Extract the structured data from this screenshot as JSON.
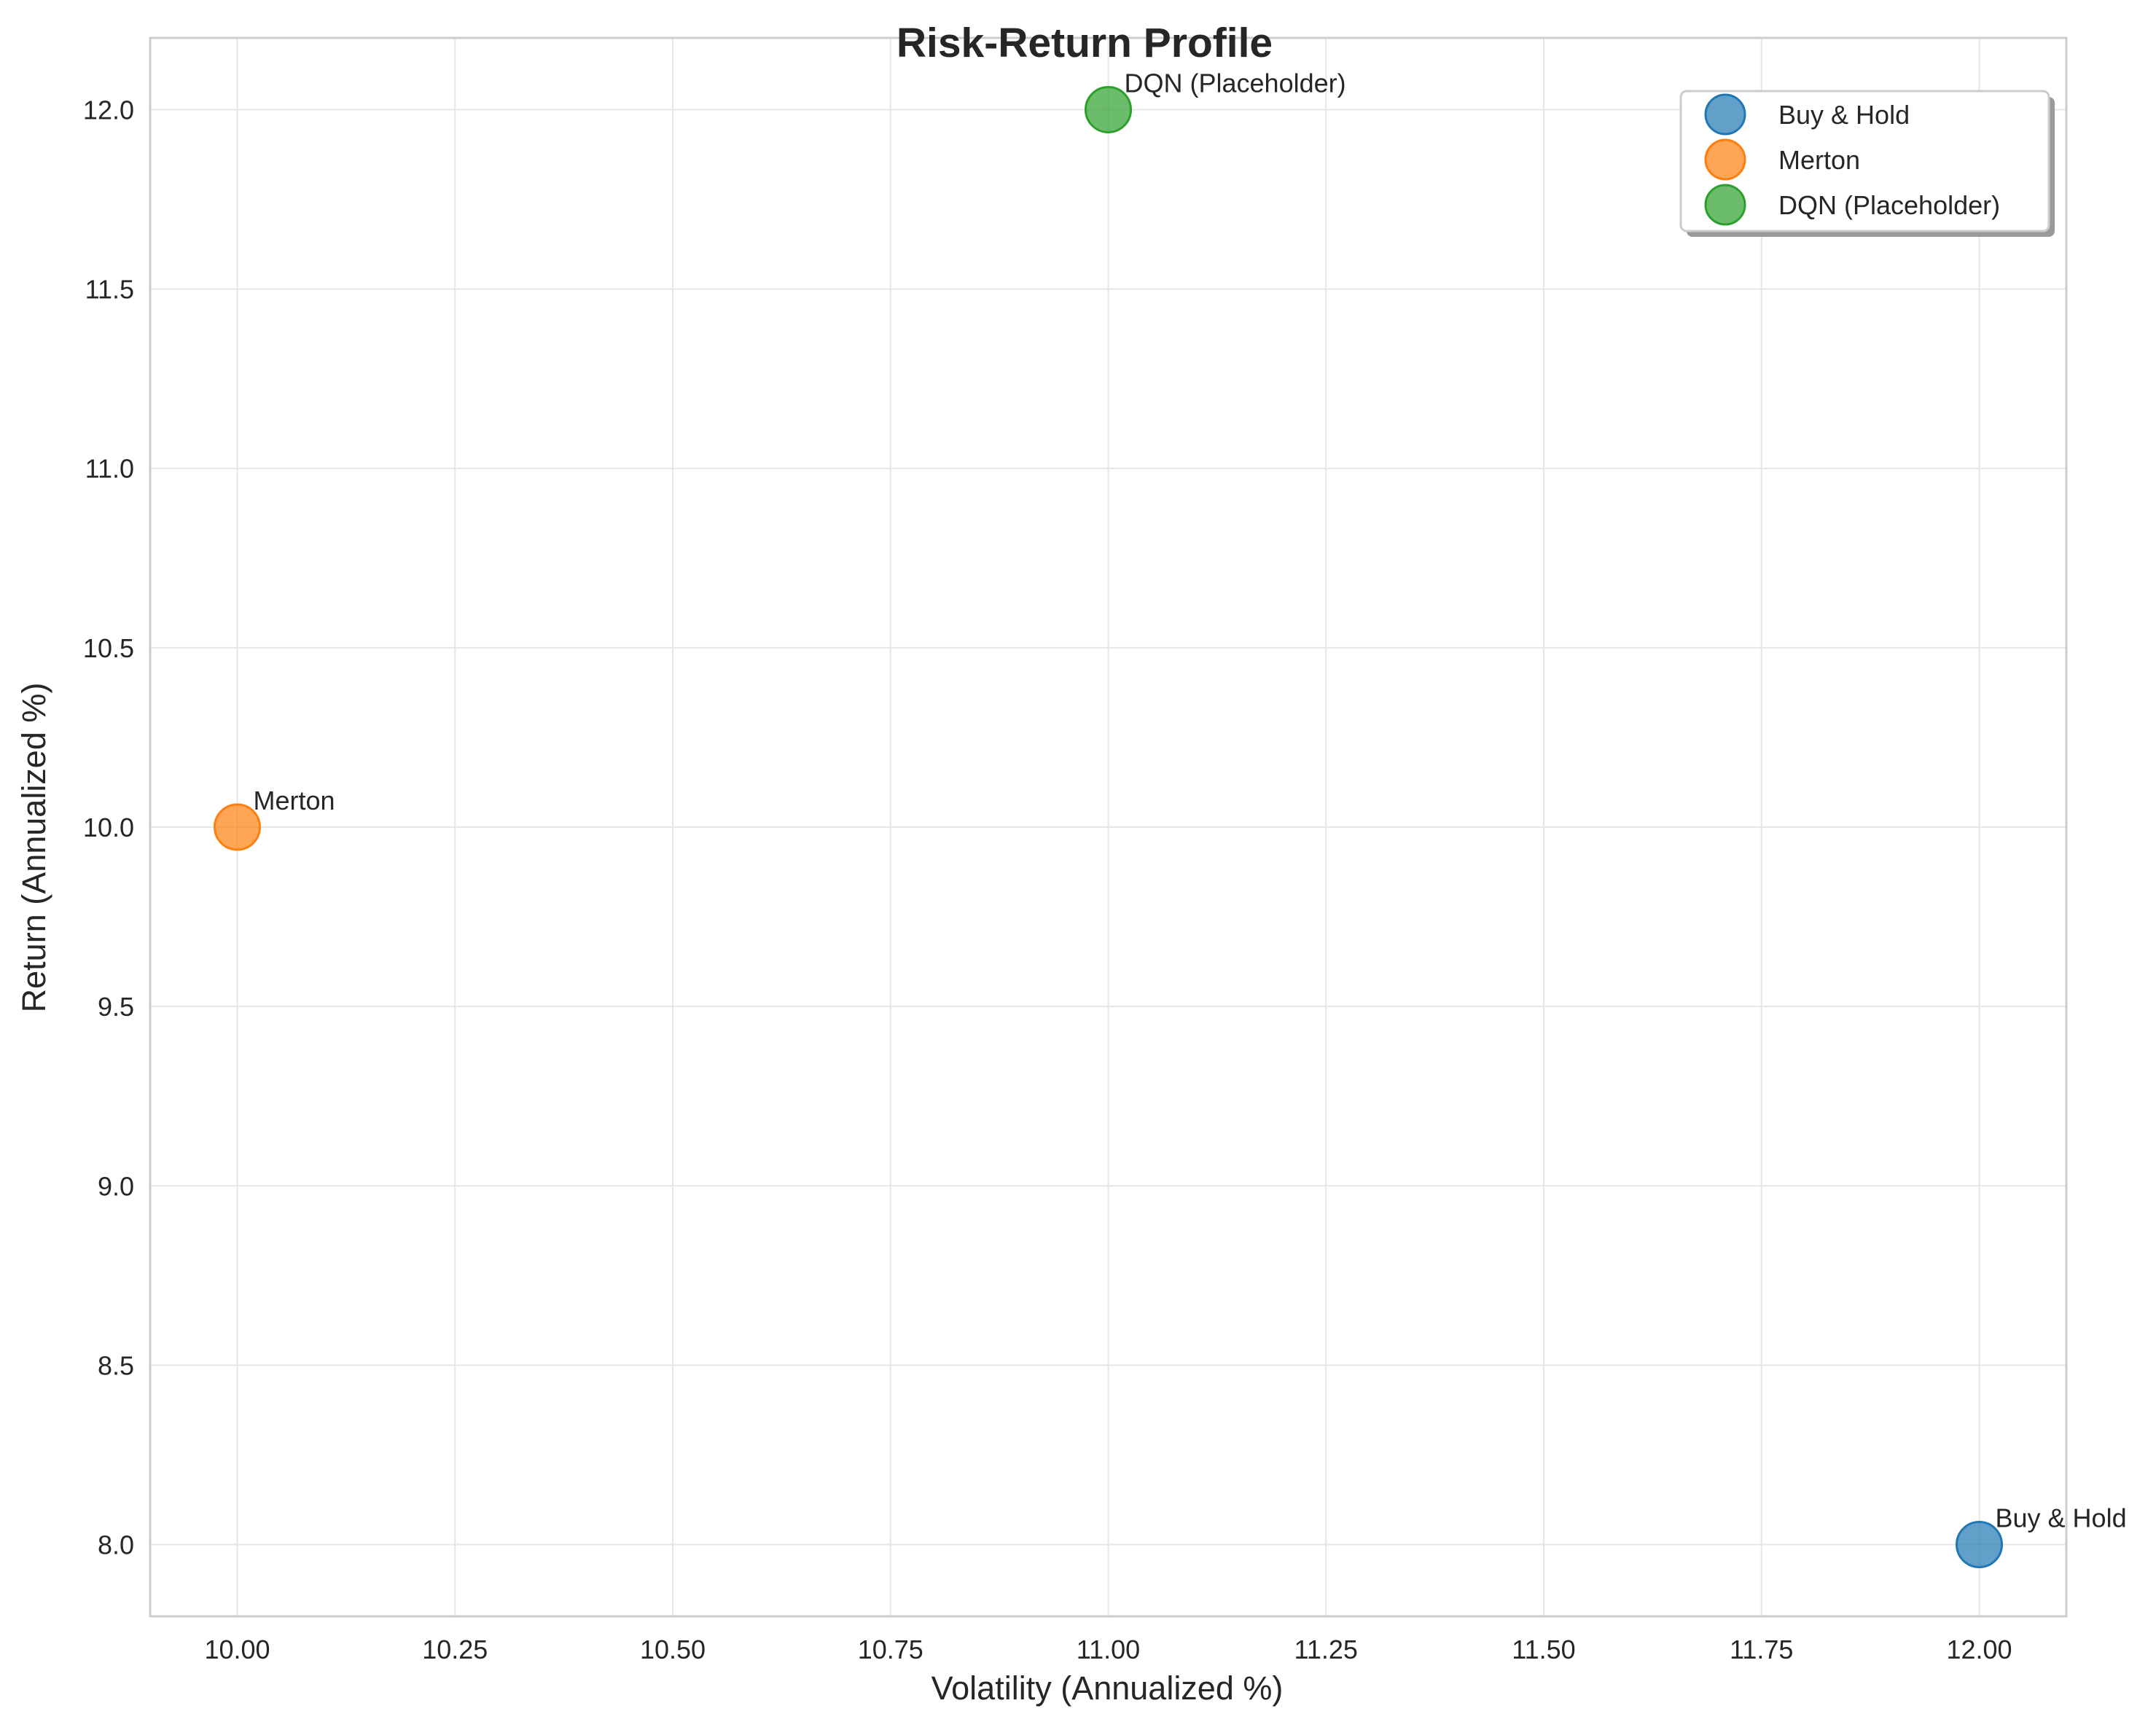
{
  "colors": {
    "background": "#ffffff",
    "grid": "#e6e6e6",
    "frame": "#cccccc",
    "text": "#262626"
  },
  "chart_data": {
    "type": "scatter",
    "title": "Risk-Return Profile",
    "xlabel": "Volatility (Annualized %)",
    "ylabel": "Return (Annualized %)",
    "xlim": [
      9.9,
      12.1
    ],
    "ylim": [
      7.8,
      12.2
    ],
    "xticks": [
      "10.00",
      "10.25",
      "10.50",
      "10.75",
      "11.00",
      "11.25",
      "11.50",
      "11.75",
      "12.00"
    ],
    "yticks": [
      "8.0",
      "8.5",
      "9.0",
      "9.5",
      "10.0",
      "10.5",
      "11.0",
      "11.5",
      "12.0"
    ],
    "grid": true,
    "legend_position": "top-right",
    "series": [
      {
        "name": "Buy & Hold",
        "color": "#1f77b4",
        "x": 12.0,
        "y": 8.0,
        "label": "Buy & Hold"
      },
      {
        "name": "Merton",
        "color": "#ff7f0e",
        "x": 10.0,
        "y": 10.0,
        "label": "Merton"
      },
      {
        "name": "DQN (Placeholder)",
        "color": "#2ca02c",
        "x": 11.0,
        "y": 12.0,
        "label": "DQN (Placeholder)"
      }
    ]
  }
}
